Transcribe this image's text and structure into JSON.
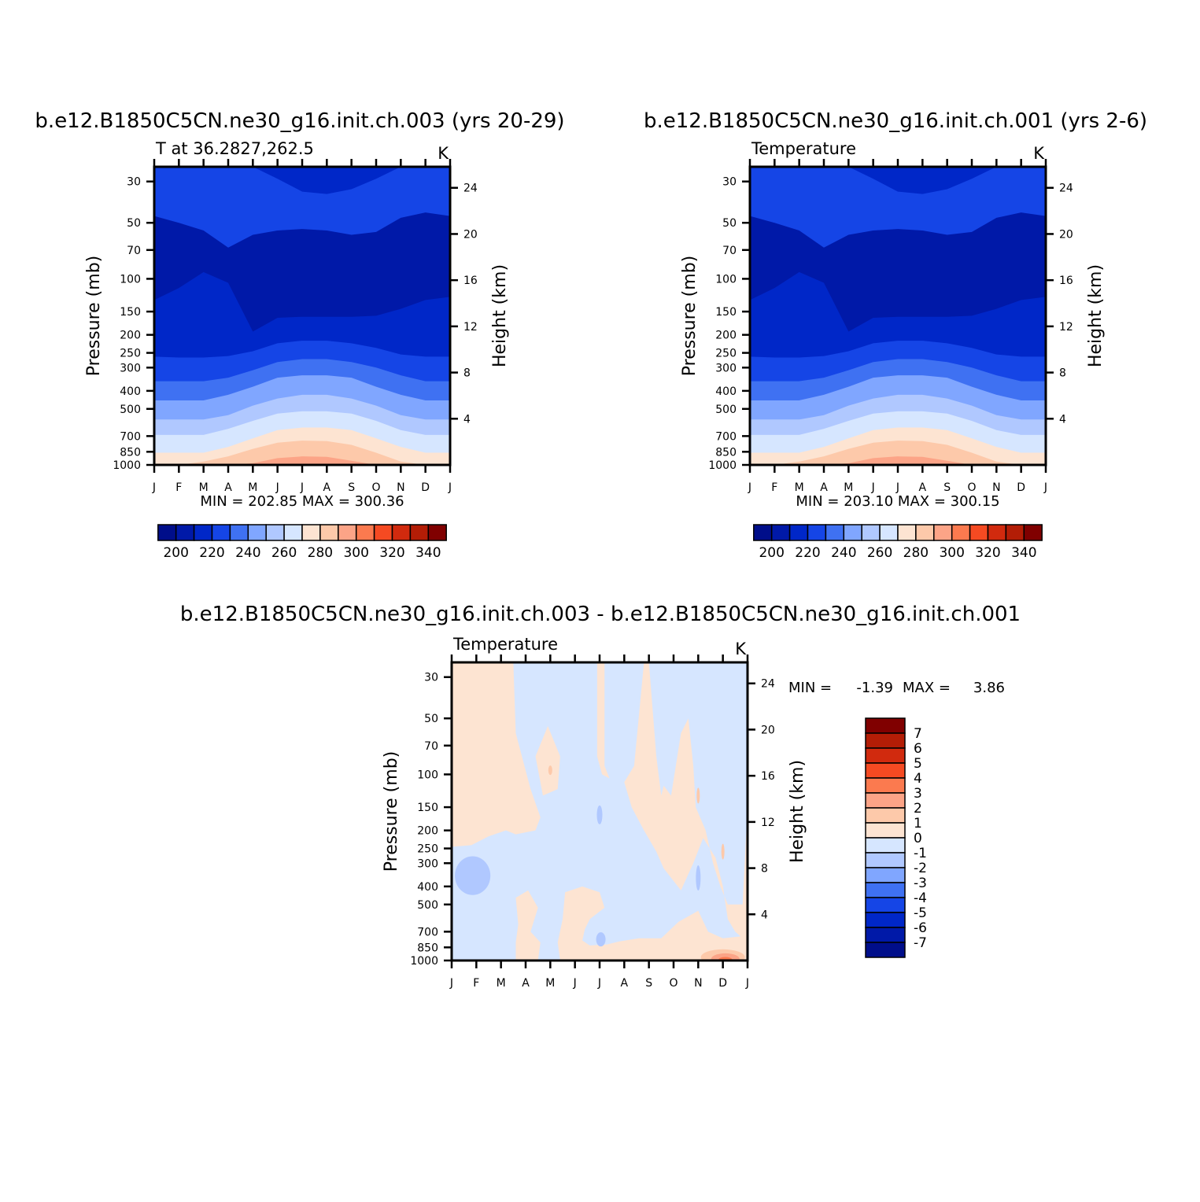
{
  "chart_data": [
    {
      "type": "heatmap",
      "title": "b.e12.B1850C5CN.ne30_g16.init.ch.003 (yrs 20-29)",
      "left_string": "T at 36.2827,262.5",
      "right_string": "K",
      "ylabel": "Pressure (mb)",
      "ylabel_right": "Height (km)",
      "x_ticks": [
        "J",
        "F",
        "M",
        "A",
        "M",
        "J",
        "J",
        "A",
        "S",
        "O",
        "N",
        "D",
        "J"
      ],
      "y_ticks": [
        "30",
        "50",
        "70",
        "100",
        "150",
        "200",
        "250",
        "300",
        "400",
        "500",
        "700",
        "850",
        "1000"
      ],
      "y_tick_values": [
        30,
        50,
        70,
        100,
        150,
        200,
        250,
        300,
        400,
        500,
        700,
        850,
        1000
      ],
      "height_ticks": [
        "24",
        "20",
        "16",
        "12",
        "8",
        "4"
      ],
      "height_tick_values": [
        24,
        20,
        16,
        12,
        8,
        4
      ],
      "stats": "MIN = 202.85 MAX = 300.36",
      "min": 202.85,
      "max": 300.36,
      "colorbar": {
        "labels": [
          "200",
          "220",
          "240",
          "260",
          "280",
          "300",
          "320",
          "340"
        ],
        "colors": [
          "#000e8a",
          "#0019a8",
          "#0027c8",
          "#1545e6",
          "#3f71f2",
          "#80a6ff",
          "#b0c8ff",
          "#d6e6ff",
          "#fde4d2",
          "#fdc9aa",
          "#fca487",
          "#fb7a4f",
          "#f54a22",
          "#d12a0e",
          "#b31d06",
          "#800000"
        ]
      }
    },
    {
      "type": "heatmap",
      "title": "b.e12.B1850C5CN.ne30_g16.init.ch.001 (yrs 2-6)",
      "left_string": "Temperature",
      "right_string": "K",
      "ylabel": "Pressure (mb)",
      "ylabel_right": "Height (km)",
      "x_ticks": [
        "J",
        "F",
        "M",
        "A",
        "M",
        "J",
        "J",
        "A",
        "S",
        "O",
        "N",
        "D",
        "J"
      ],
      "y_ticks": [
        "30",
        "50",
        "70",
        "100",
        "150",
        "200",
        "250",
        "300",
        "400",
        "500",
        "700",
        "850",
        "1000"
      ],
      "y_tick_values": [
        30,
        50,
        70,
        100,
        150,
        200,
        250,
        300,
        400,
        500,
        700,
        850,
        1000
      ],
      "height_ticks": [
        "24",
        "20",
        "16",
        "12",
        "8",
        "4"
      ],
      "height_tick_values": [
        24,
        20,
        16,
        12,
        8,
        4
      ],
      "stats": "MIN = 203.10 MAX = 300.15",
      "min": 203.1,
      "max": 300.15,
      "colorbar": {
        "labels": [
          "200",
          "220",
          "240",
          "260",
          "280",
          "300",
          "320",
          "340"
        ],
        "colors": [
          "#000e8a",
          "#0019a8",
          "#0027c8",
          "#1545e6",
          "#3f71f2",
          "#80a6ff",
          "#b0c8ff",
          "#d6e6ff",
          "#fde4d2",
          "#fdc9aa",
          "#fca487",
          "#fb7a4f",
          "#f54a22",
          "#d12a0e",
          "#b31d06",
          "#800000"
        ]
      }
    },
    {
      "type": "heatmap",
      "title": "b.e12.B1850C5CN.ne30_g16.init.ch.003 - b.e12.B1850C5CN.ne30_g16.init.ch.001",
      "left_string": "Temperature",
      "right_string": "K",
      "ylabel": "Pressure (mb)",
      "ylabel_right": "Height (km)",
      "x_ticks": [
        "J",
        "F",
        "M",
        "A",
        "M",
        "J",
        "J",
        "A",
        "S",
        "O",
        "N",
        "D",
        "J"
      ],
      "y_ticks": [
        "30",
        "50",
        "70",
        "100",
        "150",
        "200",
        "250",
        "300",
        "400",
        "500",
        "700",
        "850",
        "1000"
      ],
      "y_tick_values": [
        30,
        50,
        70,
        100,
        150,
        200,
        250,
        300,
        400,
        500,
        700,
        850,
        1000
      ],
      "height_ticks": [
        "24",
        "20",
        "16",
        "12",
        "8",
        "4"
      ],
      "height_tick_values": [
        24,
        20,
        16,
        12,
        8,
        4
      ],
      "stats_min_label": "MIN =",
      "stats_min_value": "-1.39",
      "stats_max_label": "MAX =",
      "stats_max_value": "3.86",
      "min": -1.39,
      "max": 3.86,
      "colorbar": {
        "labels": [
          "7",
          "6",
          "5",
          "4",
          "3",
          "2",
          "1",
          "0",
          "-1",
          "-2",
          "-3",
          "-4",
          "-5",
          "-6",
          "-7"
        ],
        "colors": [
          "#800000",
          "#b31d06",
          "#d12a0e",
          "#f54a22",
          "#fb7a4f",
          "#fca487",
          "#fdc9aa",
          "#fde4d2",
          "#d6e6ff",
          "#b0c8ff",
          "#80a6ff",
          "#3f71f2",
          "#1545e6",
          "#0027c8",
          "#0019a8",
          "#000e8a"
        ]
      }
    }
  ]
}
